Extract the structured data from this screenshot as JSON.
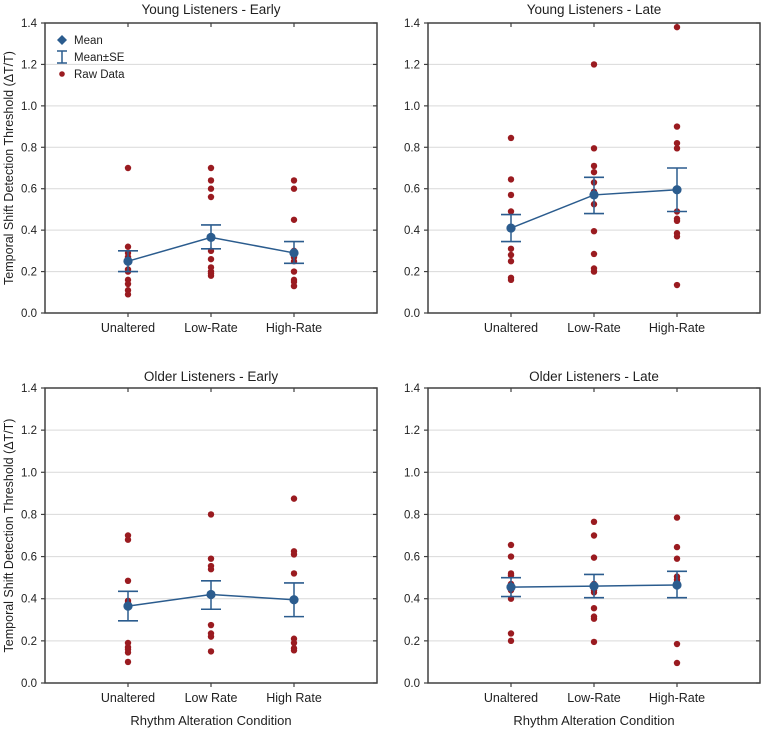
{
  "chart_data": {
    "type": "scatter",
    "figure_kind": "2x2 panel means + SE + raw data strip plot",
    "ylim": [
      0,
      1.4
    ],
    "yticks": [
      0.0,
      0.2,
      0.4,
      0.6,
      0.8,
      1.0,
      1.2,
      1.4
    ],
    "grid": "horizontal-only",
    "ylabel": "Temporal Shift Detection Threshold (ΔT/T)",
    "xlabel": "Rhythm Alteration Condition",
    "legend_position": "inside-top-left-of-first-panel",
    "legend": {
      "mean_label": "Mean",
      "se_label": "Mean±SE",
      "raw_label": "Raw Data"
    },
    "colors": {
      "mean": "#2b5c8e",
      "raw": "#9a1b20",
      "grid": "#d9d9d9",
      "axis": "#404040",
      "text": "#1f1f1f"
    },
    "panels": [
      {
        "title": "Young Listeners - Early",
        "categories": [
          "Unaltered",
          "Low-Rate",
          "High-Rate"
        ],
        "show_ylabel": true,
        "show_xlabel": false,
        "show_legend": true,
        "mean": [
          0.25,
          0.365,
          0.29
        ],
        "se_low": [
          0.2,
          0.31,
          0.24
        ],
        "se_high": [
          0.3,
          0.425,
          0.345
        ],
        "raw": [
          [
            0.7,
            0.32,
            0.29,
            0.27,
            0.25,
            0.21,
            0.2,
            0.16,
            0.14,
            0.11,
            0.09
          ],
          [
            0.7,
            0.64,
            0.6,
            0.56,
            0.3,
            0.26,
            0.22,
            0.2,
            0.19,
            0.18
          ],
          [
            0.64,
            0.6,
            0.45,
            0.3,
            0.28,
            0.27,
            0.25,
            0.2,
            0.16,
            0.15,
            0.13
          ]
        ]
      },
      {
        "title": "Young Listeners - Late",
        "categories": [
          "Unaltered",
          "Low-Rate",
          "High-Rate"
        ],
        "show_ylabel": false,
        "show_xlabel": false,
        "show_legend": false,
        "mean": [
          0.41,
          0.57,
          0.595
        ],
        "se_low": [
          0.345,
          0.48,
          0.49
        ],
        "se_high": [
          0.475,
          0.655,
          0.7
        ],
        "raw": [
          [
            0.845,
            0.645,
            0.57,
            0.49,
            0.31,
            0.28,
            0.25,
            0.17,
            0.16
          ],
          [
            1.2,
            0.795,
            0.71,
            0.68,
            0.63,
            0.585,
            0.525,
            0.395,
            0.285,
            0.215,
            0.2
          ],
          [
            1.38,
            0.9,
            0.82,
            0.795,
            0.49,
            0.455,
            0.445,
            0.385,
            0.37,
            0.135
          ]
        ]
      },
      {
        "title": "Older Listeners - Early",
        "categories": [
          "Unaltered",
          "Low Rate",
          "High Rate"
        ],
        "show_ylabel": true,
        "show_xlabel": true,
        "show_legend": false,
        "mean": [
          0.365,
          0.42,
          0.395
        ],
        "se_low": [
          0.295,
          0.35,
          0.315
        ],
        "se_high": [
          0.435,
          0.485,
          0.475
        ],
        "raw": [
          [
            0.7,
            0.68,
            0.485,
            0.39,
            0.38,
            0.19,
            0.17,
            0.16,
            0.145,
            0.1
          ],
          [
            0.8,
            0.59,
            0.555,
            0.54,
            0.275,
            0.235,
            0.22,
            0.15
          ],
          [
            0.875,
            0.625,
            0.61,
            0.52,
            0.21,
            0.19,
            0.165,
            0.155
          ]
        ]
      },
      {
        "title": "Older Listeners - Late",
        "categories": [
          "Unaltered",
          "Low-Rate",
          "High-Rate"
        ],
        "show_ylabel": false,
        "show_xlabel": true,
        "show_legend": false,
        "mean": [
          0.455,
          0.46,
          0.465
        ],
        "se_low": [
          0.41,
          0.405,
          0.405
        ],
        "se_high": [
          0.5,
          0.515,
          0.53
        ],
        "raw": [
          [
            0.655,
            0.6,
            0.52,
            0.51,
            0.47,
            0.455,
            0.44,
            0.4,
            0.235,
            0.2
          ],
          [
            0.765,
            0.7,
            0.595,
            0.47,
            0.455,
            0.44,
            0.43,
            0.355,
            0.315,
            0.305,
            0.195
          ],
          [
            0.785,
            0.645,
            0.59,
            0.505,
            0.49,
            0.48,
            0.47,
            0.465,
            0.185,
            0.095
          ]
        ]
      }
    ]
  }
}
